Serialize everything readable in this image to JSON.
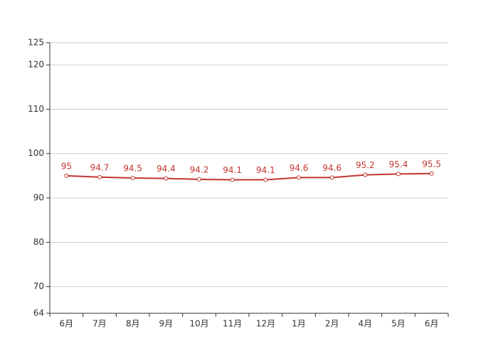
{
  "chart_data": {
    "type": "line",
    "categories": [
      "6月",
      "7月",
      "8月",
      "9月",
      "10月",
      "11月",
      "12月",
      "1月",
      "2月",
      "4月",
      "5月",
      "6月"
    ],
    "values": [
      95,
      94.7,
      94.5,
      94.4,
      94.2,
      94.1,
      94.1,
      94.6,
      94.6,
      95.2,
      95.4,
      95.5
    ],
    "color": "#c23531",
    "ylim": [
      64,
      125
    ],
    "yticks": [
      64,
      70,
      80,
      90,
      100,
      110,
      120,
      125
    ],
    "grid": true
  }
}
